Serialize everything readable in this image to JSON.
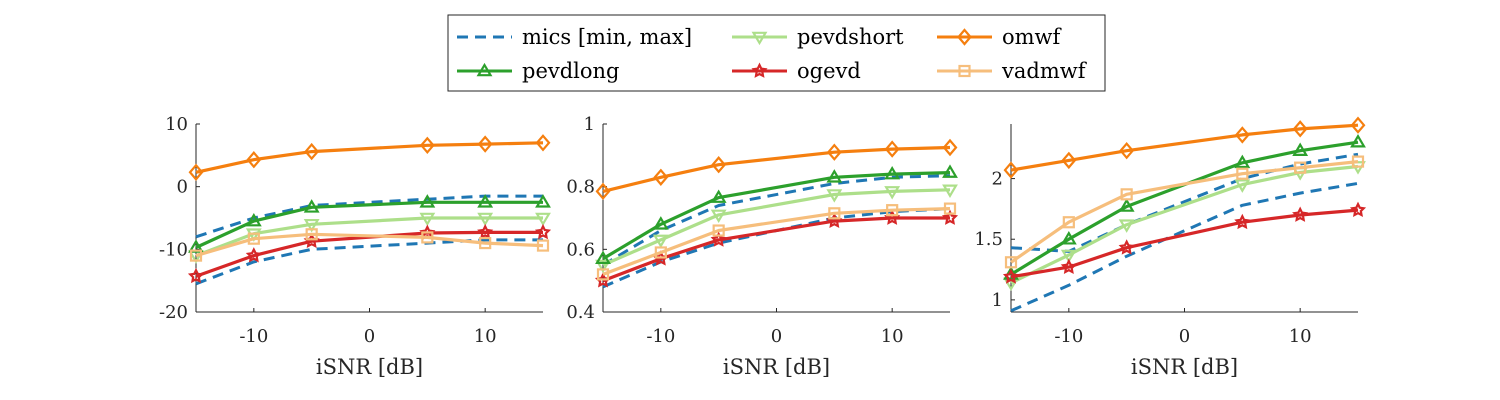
{
  "legend": {
    "entries": [
      {
        "label": "mics [min, max]",
        "series": "mics",
        "color": "#1f77b4",
        "marker": "none",
        "dash": true
      },
      {
        "label": "pevdshort",
        "series": "pevdshort",
        "color": "#addf8a",
        "marker": "triangle-down",
        "dash": false
      },
      {
        "label": "omwf",
        "series": "omwf",
        "color": "#f57f0f",
        "marker": "diamond",
        "dash": false
      },
      {
        "label": "pevdlong",
        "series": "pevdlong",
        "color": "#2ca02c",
        "marker": "triangle-up",
        "dash": false
      },
      {
        "label": "ogevd",
        "series": "ogevd",
        "color": "#d62728",
        "marker": "star",
        "dash": false
      },
      {
        "label": "vadmwf",
        "series": "vadmwf",
        "color": "#f6be7c",
        "marker": "square",
        "dash": false
      }
    ]
  },
  "chart_data": [
    {
      "type": "line",
      "title": "",
      "xlabel": "iSNR [dB]",
      "ylabel": "",
      "xlim": [
        -15,
        15
      ],
      "ylim": [
        -20,
        10
      ],
      "xticks": [
        -10,
        0,
        10
      ],
      "yticks": [
        -20,
        -10,
        0,
        10
      ],
      "x": [
        -15,
        -10,
        -5,
        5,
        10,
        15
      ],
      "grid": false,
      "series": [
        {
          "name": "mics [min, max]",
          "style": "mics",
          "values": [
            -8,
            -5,
            -3,
            -2,
            -1.5,
            -1.5
          ]
        },
        {
          "name": "mics [min, max]",
          "style": "mics",
          "values": [
            -15.5,
            -12,
            -10,
            -9,
            -8.5,
            -8.5
          ]
        },
        {
          "name": "pevdshort",
          "style": "pevdshort",
          "values": [
            -11,
            -7.5,
            -6,
            -5,
            -5,
            -5
          ]
        },
        {
          "name": "pevdlong",
          "style": "pevdlong",
          "values": [
            -9.7,
            -5.5,
            -3.3,
            -2.5,
            -2.5,
            -2.5
          ]
        },
        {
          "name": "ogevd",
          "style": "ogevd",
          "values": [
            -14.3,
            -11,
            -8.7,
            -7.4,
            -7.3,
            -7.3
          ]
        },
        {
          "name": "vadmwf",
          "style": "vadmwf",
          "values": [
            -11,
            -8.3,
            -7.6,
            -8.1,
            -9,
            -9.4
          ]
        },
        {
          "name": "omwf",
          "style": "omwf",
          "values": [
            2.3,
            4.3,
            5.6,
            6.6,
            6.8,
            7
          ]
        }
      ]
    },
    {
      "type": "line",
      "title": "",
      "xlabel": "iSNR [dB]",
      "ylabel": "",
      "xlim": [
        -15,
        15
      ],
      "ylim": [
        0.4,
        1.0
      ],
      "xticks": [
        -10,
        0,
        10
      ],
      "yticks": [
        0.4,
        0.6,
        0.8,
        1
      ],
      "x": [
        -15,
        -10,
        -5,
        5,
        10,
        15
      ],
      "grid": false,
      "series": [
        {
          "name": "mics [min, max]",
          "style": "mics",
          "values": [
            0.55,
            0.66,
            0.74,
            0.81,
            0.83,
            0.835
          ]
        },
        {
          "name": "mics [min, max]",
          "style": "mics",
          "values": [
            0.48,
            0.56,
            0.62,
            0.7,
            0.72,
            0.73
          ]
        },
        {
          "name": "pevdshort",
          "style": "pevdshort",
          "values": [
            0.55,
            0.63,
            0.71,
            0.775,
            0.785,
            0.79
          ]
        },
        {
          "name": "pevdlong",
          "style": "pevdlong",
          "values": [
            0.57,
            0.68,
            0.765,
            0.83,
            0.84,
            0.845
          ]
        },
        {
          "name": "ogevd",
          "style": "ogevd",
          "values": [
            0.5,
            0.57,
            0.63,
            0.69,
            0.7,
            0.7
          ]
        },
        {
          "name": "vadmwf",
          "style": "vadmwf",
          "values": [
            0.52,
            0.59,
            0.66,
            0.715,
            0.725,
            0.73
          ]
        },
        {
          "name": "omwf",
          "style": "omwf",
          "values": [
            0.785,
            0.83,
            0.87,
            0.91,
            0.92,
            0.925
          ]
        }
      ]
    },
    {
      "type": "line",
      "title": "",
      "xlabel": "iSNR [dB]",
      "ylabel": "",
      "xlim": [
        -15,
        15
      ],
      "ylim": [
        0.9,
        2.45
      ],
      "xticks": [
        -10,
        0,
        10
      ],
      "yticks": [
        1,
        1.5,
        2
      ],
      "x": [
        -15,
        -10,
        -5,
        5,
        10,
        15
      ],
      "grid": false,
      "series": [
        {
          "name": "mics [min, max]",
          "style": "mics",
          "values": [
            1.43,
            1.4,
            1.62,
            2.0,
            2.12,
            2.2
          ]
        },
        {
          "name": "mics [min, max]",
          "style": "mics",
          "values": [
            0.91,
            1.12,
            1.36,
            1.78,
            1.88,
            1.96
          ]
        },
        {
          "name": "pevdshort",
          "style": "pevdshort",
          "values": [
            1.14,
            1.37,
            1.62,
            1.95,
            2.05,
            2.1
          ]
        },
        {
          "name": "pevdlong",
          "style": "pevdlong",
          "values": [
            1.21,
            1.5,
            1.77,
            2.13,
            2.23,
            2.3
          ]
        },
        {
          "name": "ogevd",
          "style": "ogevd",
          "values": [
            1.19,
            1.27,
            1.43,
            1.64,
            1.7,
            1.74
          ]
        },
        {
          "name": "vadmwf",
          "style": "vadmwf",
          "values": [
            1.31,
            1.64,
            1.87,
            2.04,
            2.09,
            2.14
          ]
        },
        {
          "name": "omwf",
          "style": "omwf",
          "values": [
            2.07,
            2.15,
            2.23,
            2.36,
            2.41,
            2.44
          ]
        }
      ]
    }
  ]
}
